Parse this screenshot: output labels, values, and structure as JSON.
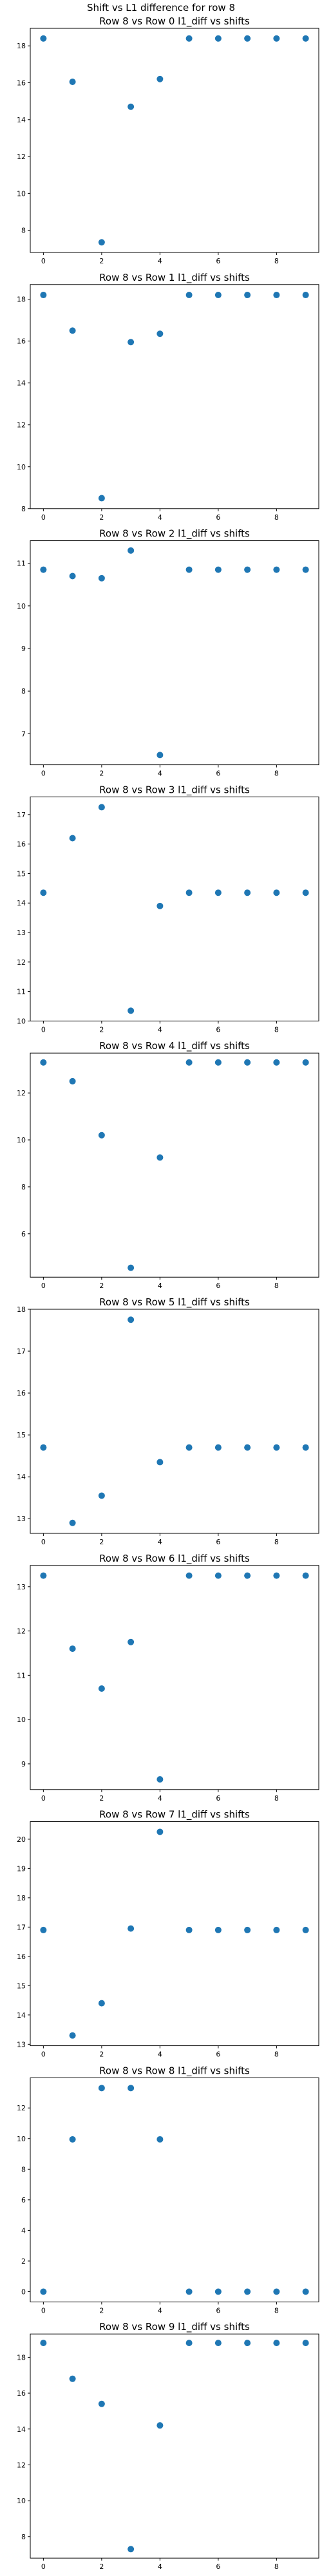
{
  "suptitle": "Shift vs L1 difference for row 8",
  "point_color": "#1f77b4",
  "chart_data": [
    {
      "type": "scatter",
      "title": "Row 8 vs Row 0 l1_diff vs shifts",
      "x": [
        0,
        1,
        2,
        3,
        4,
        5,
        6,
        7,
        8,
        9
      ],
      "y": [
        18.4,
        16.05,
        7.35,
        14.7,
        16.2,
        18.4,
        18.4,
        18.4,
        18.4,
        18.4
      ],
      "xlim": [
        -0.45,
        9.45
      ],
      "ylim": [
        6.8,
        18.95
      ],
      "xticks": [
        0,
        2,
        4,
        6,
        8
      ],
      "yticks": [
        8,
        10,
        12,
        14,
        16,
        18
      ],
      "xlabel": "",
      "ylabel": "",
      "grid": false
    },
    {
      "type": "scatter",
      "title": "Row 8 vs Row 1 l1_diff vs shifts",
      "x": [
        0,
        1,
        2,
        3,
        4,
        5,
        6,
        7,
        8,
        9
      ],
      "y": [
        18.2,
        16.5,
        8.5,
        15.95,
        16.35,
        18.2,
        18.2,
        18.2,
        18.2,
        18.2
      ],
      "xlim": [
        -0.45,
        9.45
      ],
      "ylim": [
        8.0,
        18.7
      ],
      "xticks": [
        0,
        2,
        4,
        6,
        8
      ],
      "yticks": [
        8,
        10,
        12,
        14,
        16,
        18
      ],
      "xlabel": "",
      "ylabel": "",
      "grid": false
    },
    {
      "type": "scatter",
      "title": "Row 8 vs Row 2 l1_diff vs shifts",
      "x": [
        0,
        1,
        2,
        3,
        4,
        5,
        6,
        7,
        8,
        9
      ],
      "y": [
        10.85,
        10.7,
        10.65,
        11.3,
        6.5,
        10.85,
        10.85,
        10.85,
        10.85,
        10.85
      ],
      "xlim": [
        -0.45,
        9.45
      ],
      "ylim": [
        6.27,
        11.53
      ],
      "xticks": [
        0,
        2,
        4,
        6,
        8
      ],
      "yticks": [
        7,
        8,
        9,
        10,
        11
      ],
      "xlabel": "",
      "ylabel": "",
      "grid": false
    },
    {
      "type": "scatter",
      "title": "Row 8 vs Row 3 l1_diff vs shifts",
      "x": [
        0,
        1,
        2,
        3,
        4,
        5,
        6,
        7,
        8,
        9
      ],
      "y": [
        14.35,
        16.2,
        17.25,
        10.35,
        13.9,
        14.35,
        14.35,
        14.35,
        14.35,
        14.35
      ],
      "xlim": [
        -0.45,
        9.45
      ],
      "ylim": [
        10.0,
        17.6
      ],
      "xticks": [
        0,
        2,
        4,
        6,
        8
      ],
      "yticks": [
        10,
        11,
        12,
        13,
        14,
        15,
        16,
        17
      ],
      "xlabel": "",
      "ylabel": "",
      "grid": false
    },
    {
      "type": "scatter",
      "title": "Row 8 vs Row 4 l1_diff vs shifts",
      "x": [
        0,
        1,
        2,
        3,
        4,
        5,
        6,
        7,
        8,
        9
      ],
      "y": [
        13.3,
        12.5,
        10.2,
        4.55,
        9.25,
        13.3,
        13.3,
        13.3,
        13.3,
        13.3
      ],
      "xlim": [
        -0.45,
        9.45
      ],
      "ylim": [
        4.15,
        13.7
      ],
      "xticks": [
        0,
        2,
        4,
        6,
        8
      ],
      "yticks": [
        6,
        8,
        10,
        12
      ],
      "xlabel": "",
      "ylabel": "",
      "grid": false
    },
    {
      "type": "scatter",
      "title": "Row 8 vs Row 5 l1_diff vs shifts",
      "x": [
        0,
        1,
        2,
        3,
        4,
        5,
        6,
        7,
        8,
        9
      ],
      "y": [
        14.7,
        12.9,
        13.55,
        17.75,
        14.35,
        14.7,
        14.7,
        14.7,
        14.7,
        14.7
      ],
      "xlim": [
        -0.45,
        9.45
      ],
      "ylim": [
        12.65,
        18.0
      ],
      "xticks": [
        0,
        2,
        4,
        6,
        8
      ],
      "yticks": [
        13,
        14,
        15,
        16,
        17,
        18
      ],
      "xlabel": "",
      "ylabel": "",
      "grid": false
    },
    {
      "type": "scatter",
      "title": "Row 8 vs Row 6 l1_diff vs shifts",
      "x": [
        0,
        1,
        2,
        3,
        4,
        5,
        6,
        7,
        8,
        9
      ],
      "y": [
        13.25,
        11.6,
        10.7,
        11.75,
        8.65,
        13.25,
        13.25,
        13.25,
        13.25,
        13.25
      ],
      "xlim": [
        -0.45,
        9.45
      ],
      "ylim": [
        8.42,
        13.48
      ],
      "xticks": [
        0,
        2,
        4,
        6,
        8
      ],
      "yticks": [
        9,
        10,
        11,
        12,
        13
      ],
      "xlabel": "",
      "ylabel": "",
      "grid": false
    },
    {
      "type": "scatter",
      "title": "Row 8 vs Row 7 l1_diff vs shifts",
      "x": [
        0,
        1,
        2,
        3,
        4,
        5,
        6,
        7,
        8,
        9
      ],
      "y": [
        16.9,
        13.3,
        14.4,
        16.95,
        20.25,
        16.9,
        16.9,
        16.9,
        16.9,
        16.9
      ],
      "xlim": [
        -0.45,
        9.45
      ],
      "ylim": [
        12.95,
        20.6
      ],
      "xticks": [
        0,
        2,
        4,
        6,
        8
      ],
      "yticks": [
        13,
        14,
        15,
        16,
        17,
        18,
        19,
        20
      ],
      "xlabel": "",
      "ylabel": "",
      "grid": false
    },
    {
      "type": "scatter",
      "title": "Row 8 vs Row 8 l1_diff vs shifts",
      "x": [
        0,
        1,
        2,
        3,
        4,
        5,
        6,
        7,
        8,
        9
      ],
      "y": [
        0,
        9.95,
        13.3,
        13.3,
        9.95,
        0,
        0,
        0,
        0,
        0
      ],
      "xlim": [
        -0.45,
        9.45
      ],
      "ylim": [
        -0.67,
        13.97
      ],
      "xticks": [
        0,
        2,
        4,
        6,
        8
      ],
      "yticks": [
        0,
        2,
        4,
        6,
        8,
        10,
        12
      ],
      "xlabel": "",
      "ylabel": "",
      "grid": false
    },
    {
      "type": "scatter",
      "title": "Row 8 vs Row 9 l1_diff vs shifts",
      "x": [
        0,
        1,
        2,
        3,
        4,
        5,
        6,
        7,
        8,
        9
      ],
      "y": [
        18.8,
        16.8,
        15.4,
        7.3,
        14.2,
        18.8,
        18.8,
        18.8,
        18.8,
        18.8
      ],
      "xlim": [
        -0.45,
        9.45
      ],
      "ylim": [
        6.8,
        19.3
      ],
      "xticks": [
        0,
        2,
        4,
        6,
        8
      ],
      "yticks": [
        8,
        10,
        12,
        14,
        16,
        18
      ],
      "xlabel": "",
      "ylabel": "",
      "grid": false
    }
  ]
}
